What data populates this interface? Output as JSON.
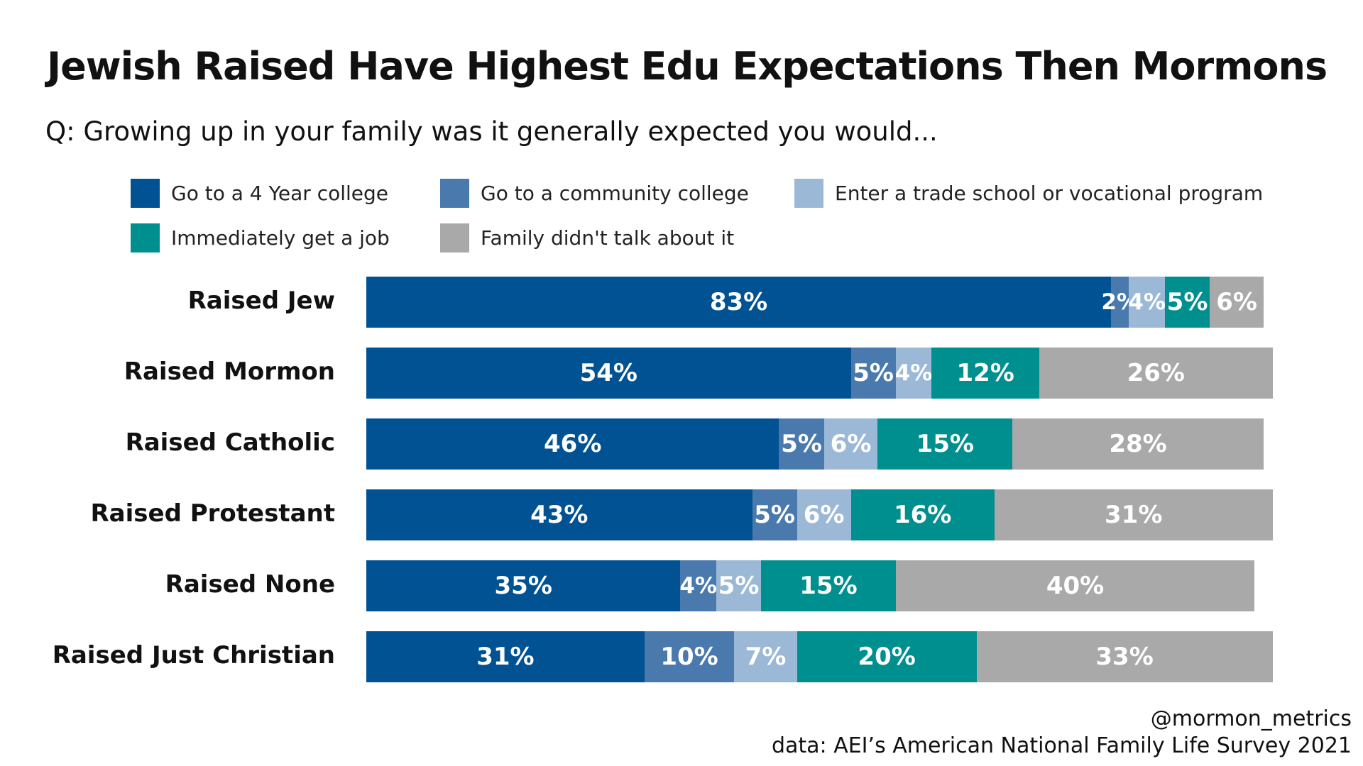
{
  "chart_data": {
    "type": "bar",
    "orientation": "horizontal",
    "stacked": true,
    "title": "Jewish Raised Have Highest Edu Expectations Then Mormons",
    "subtitle": "Q: Growing up in your family was it generally expected you would...",
    "categories": [
      "Raised Jew",
      "Raised Mormon",
      "Raised Catholic",
      "Raised Protestant",
      "Raised None",
      "Raised Just Christian"
    ],
    "series": [
      {
        "name": "Go to a 4 Year college",
        "color": "#005293",
        "values": [
          83,
          54,
          46,
          43,
          35,
          31
        ]
      },
      {
        "name": "Go to a community college",
        "color": "#4a7aad",
        "values": [
          2,
          5,
          5,
          5,
          4,
          10
        ]
      },
      {
        "name": "Enter a trade school or vocational program",
        "color": "#9bb9d7",
        "values": [
          4,
          4,
          6,
          6,
          5,
          7
        ]
      },
      {
        "name": "Immediately get a job",
        "color": "#008f8f",
        "values": [
          5,
          12,
          15,
          16,
          15,
          20
        ]
      },
      {
        "name": "Family didn't talk about it",
        "color": "#a9a9a9",
        "values": [
          6,
          26,
          28,
          31,
          40,
          33
        ]
      }
    ],
    "value_suffix": "%",
    "xlim": [
      0,
      100
    ],
    "legend_position": "top-left",
    "grid": false
  },
  "credit": {
    "handle": "@mormon_metrics",
    "source": "data: AEI’s American National Family Life Survey 2021"
  }
}
